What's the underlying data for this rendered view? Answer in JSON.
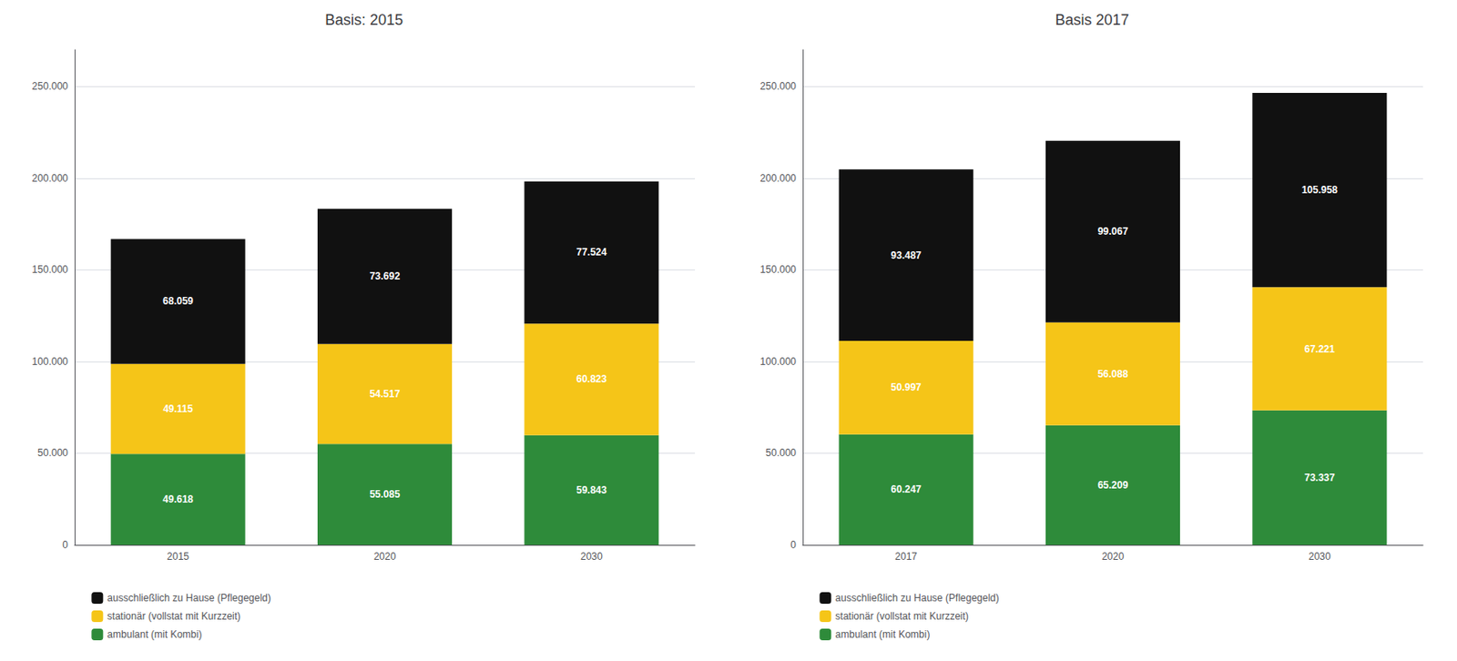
{
  "chart_data": [
    {
      "type": "bar",
      "title": "Basis: 2015",
      "categories": [
        "2015",
        "2020",
        "2030"
      ],
      "stacked": true,
      "data_labels": true,
      "grid": true,
      "legend": "lower left",
      "series": [
        {
          "name": "ambulant (mit Kombi)",
          "color": "#2e8b3a",
          "values": [
            49618,
            55085,
            59843
          ],
          "value_labels": [
            "49.618",
            "55.085",
            "59.843"
          ]
        },
        {
          "name": "stationär (vollstat mit Kurzzeit)",
          "color": "#f5c518",
          "values": [
            49115,
            54517,
            60823
          ],
          "value_labels": [
            "49.115",
            "54.517",
            "60.823"
          ]
        },
        {
          "name": "ausschließlich zu Hause (Pflegegeld)",
          "color": "#111111",
          "values": [
            68059,
            73692,
            77524
          ],
          "value_labels": [
            "68.059",
            "73.692",
            "77.524"
          ]
        }
      ],
      "ylim": [
        0,
        270000
      ],
      "yticks": [
        0,
        {
          "value": 50000,
          "label": "50.000"
        },
        {
          "value": 100000,
          "label": "100.000"
        },
        {
          "value": 150000,
          "label": "150.000"
        },
        {
          "value": 200000,
          "label": "200.000"
        },
        {
          "value": 250000,
          "label": "250.000"
        }
      ]
    },
    {
      "type": "bar",
      "title": "Basis 2017",
      "categories": [
        "2017",
        "2020",
        "2030"
      ],
      "stacked": true,
      "data_labels": true,
      "grid": true,
      "legend": "lower left",
      "series": [
        {
          "name": "ambulant (mit Kombi)",
          "color": "#2e8b3a",
          "values": [
            60247,
            65209,
            73337
          ],
          "value_labels": [
            "60.247",
            "65.209",
            "73.337"
          ]
        },
        {
          "name": "stationär (vollstat mit Kurzzeit)",
          "color": "#f5c518",
          "values": [
            50997,
            56088,
            67221
          ],
          "value_labels": [
            "50.997",
            "56.088",
            "67.221"
          ]
        },
        {
          "name": "ausschließlich zu Hause (Pflegegeld)",
          "color": "#111111",
          "values": [
            93487,
            99067,
            105958
          ],
          "value_labels": [
            "93.487",
            "99.067",
            "105.958"
          ]
        }
      ],
      "ylim": [
        0,
        270000
      ],
      "yticks": [
        0,
        {
          "value": 50000,
          "label": "50.000"
        },
        {
          "value": 100000,
          "label": "100.000"
        },
        {
          "value": 150000,
          "label": "150.000"
        },
        {
          "value": 200000,
          "label": "200.000"
        },
        {
          "value": 250000,
          "label": "250.000"
        }
      ]
    }
  ]
}
